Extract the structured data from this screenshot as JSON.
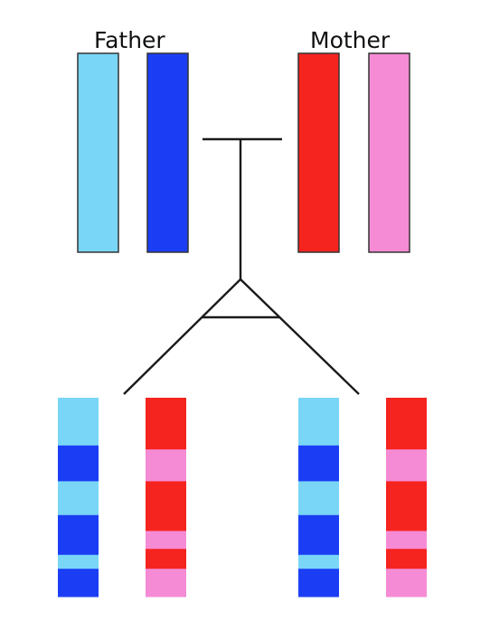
{
  "labels": {
    "father": "Father",
    "mother": "Mother"
  },
  "colors": {
    "light_blue": "#79d6f7",
    "dark_blue": "#1b3ef5",
    "red": "#f5241f",
    "pink": "#f58bd4",
    "line": "#1a1a1a",
    "outline": "#333333"
  },
  "parent_chromosomes": [
    {
      "name": "father-chromosome-1",
      "parent": "father",
      "color": "light_blue"
    },
    {
      "name": "father-chromosome-2",
      "parent": "father",
      "color": "dark_blue"
    },
    {
      "name": "mother-chromosome-1",
      "parent": "mother",
      "color": "red"
    },
    {
      "name": "mother-chromosome-2",
      "parent": "mother",
      "color": "pink"
    }
  ],
  "offspring_chromosomes": [
    {
      "name": "offspring-left-paternal-chromosome",
      "bands": [
        {
          "color": "light_blue",
          "fraction": 0.24
        },
        {
          "color": "dark_blue",
          "fraction": 0.18
        },
        {
          "color": "light_blue",
          "fraction": 0.17
        },
        {
          "color": "dark_blue",
          "fraction": 0.2
        },
        {
          "color": "light_blue",
          "fraction": 0.07
        },
        {
          "color": "dark_blue",
          "fraction": 0.14
        }
      ]
    },
    {
      "name": "offspring-left-maternal-chromosome",
      "bands": [
        {
          "color": "red",
          "fraction": 0.26
        },
        {
          "color": "pink",
          "fraction": 0.16
        },
        {
          "color": "red",
          "fraction": 0.25
        },
        {
          "color": "pink",
          "fraction": 0.09
        },
        {
          "color": "red",
          "fraction": 0.1
        },
        {
          "color": "pink",
          "fraction": 0.14
        }
      ]
    },
    {
      "name": "offspring-right-paternal-chromosome",
      "bands": [
        {
          "color": "light_blue",
          "fraction": 0.24
        },
        {
          "color": "dark_blue",
          "fraction": 0.18
        },
        {
          "color": "light_blue",
          "fraction": 0.17
        },
        {
          "color": "dark_blue",
          "fraction": 0.2
        },
        {
          "color": "light_blue",
          "fraction": 0.07
        },
        {
          "color": "dark_blue",
          "fraction": 0.14
        }
      ]
    },
    {
      "name": "offspring-right-maternal-chromosome",
      "bands": [
        {
          "color": "red",
          "fraction": 0.26
        },
        {
          "color": "pink",
          "fraction": 0.16
        },
        {
          "color": "red",
          "fraction": 0.25
        },
        {
          "color": "pink",
          "fraction": 0.09
        },
        {
          "color": "red",
          "fraction": 0.1
        },
        {
          "color": "pink",
          "fraction": 0.14
        }
      ]
    }
  ]
}
